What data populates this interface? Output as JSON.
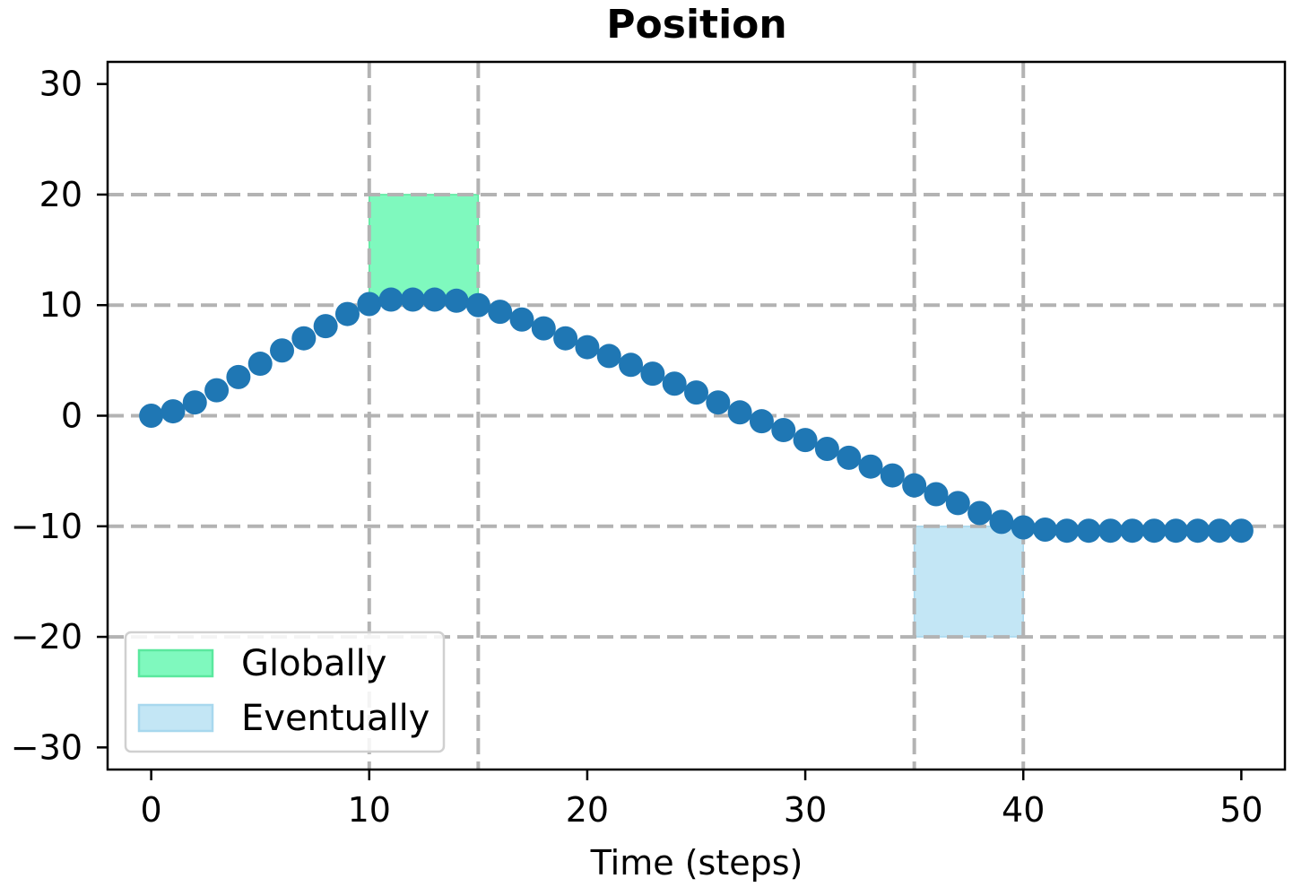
{
  "chart_data": {
    "type": "scatter",
    "title": "Position",
    "xlabel": "Time (steps)",
    "ylabel": "",
    "xlim": [
      -2,
      52
    ],
    "ylim": [
      -32,
      32
    ],
    "xticks": [
      0,
      10,
      20,
      30,
      40,
      50
    ],
    "yticks": [
      30,
      20,
      10,
      0,
      -10,
      -20,
      -30
    ],
    "xtick_labels": [
      "0",
      "10",
      "20",
      "30",
      "40",
      "50"
    ],
    "ytick_labels": [
      "30",
      "20",
      "10",
      "0",
      "−10",
      "−20",
      "−30"
    ],
    "grid": true,
    "legend_position": "lower-left",
    "series": [
      {
        "color": "#1f77b4",
        "x": [
          0,
          1,
          2,
          3,
          4,
          5,
          6,
          7,
          8,
          9,
          10,
          11,
          12,
          13,
          14,
          15,
          16,
          17,
          18,
          19,
          20,
          21,
          22,
          23,
          24,
          25,
          26,
          27,
          28,
          29,
          30,
          31,
          32,
          33,
          34,
          35,
          36,
          37,
          38,
          39,
          40,
          41,
          42,
          43,
          44,
          45,
          46,
          47,
          48,
          49,
          50
        ],
        "y": [
          0,
          0.4,
          1.2,
          2.3,
          3.5,
          4.7,
          5.9,
          7.0,
          8.1,
          9.2,
          10.1,
          10.5,
          10.5,
          10.5,
          10.4,
          10.0,
          9.4,
          8.7,
          7.9,
          7.0,
          6.2,
          5.4,
          4.6,
          3.8,
          2.9,
          2.1,
          1.2,
          0.3,
          -0.5,
          -1.3,
          -2.2,
          -3.0,
          -3.8,
          -4.6,
          -5.4,
          -6.3,
          -7.1,
          -7.9,
          -8.8,
          -9.6,
          -10.1,
          -10.3,
          -10.4,
          -10.4,
          -10.4,
          -10.4,
          -10.4,
          -10.4,
          -10.4,
          -10.4,
          -10.4
        ]
      }
    ],
    "regions": [
      {
        "name": "Globally",
        "x0": 10,
        "x1": 15,
        "y0": 10,
        "y1": 20,
        "color": "#7ff9be",
        "edge": "#5ae89e"
      },
      {
        "name": "Eventually",
        "x0": 35,
        "x1": 40,
        "y0": -20,
        "y1": -10,
        "color": "#c3e6f5",
        "edge": "#a8d8ee"
      }
    ],
    "vlines": [
      10,
      15,
      35,
      40
    ],
    "hlines": [
      20,
      10,
      0,
      -10,
      -20
    ]
  }
}
